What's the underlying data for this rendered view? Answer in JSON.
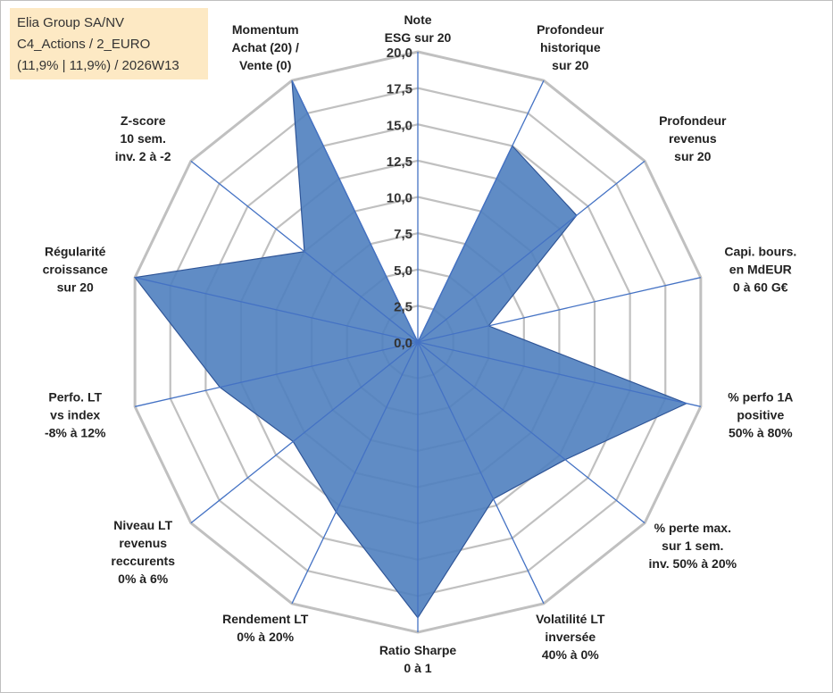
{
  "title_box": {
    "line1": "Elia Group SA/NV",
    "line2": "C4_Actions / 2_EURO",
    "line3": "(11,9% | 11,9%) / 2026W13"
  },
  "colors": {
    "grid": "#c0c0c0",
    "spoke": "#4472c4",
    "fill": "#4f7fbf",
    "stroke": "#2f5597",
    "title_bg": "#fde9c4"
  },
  "chart_data": {
    "type": "radar",
    "rmin": 0,
    "rmax": 20,
    "step": 2.5,
    "ticks": [
      "0,0",
      "2,5",
      "5,0",
      "7,5",
      "10,0",
      "12,5",
      "15,0",
      "17,5",
      "20,0"
    ],
    "axes": [
      {
        "label": [
          "Note",
          "ESG sur 20"
        ],
        "value": 0
      },
      {
        "label": [
          "Profondeur",
          "historique",
          "sur 20"
        ],
        "value": 15
      },
      {
        "label": [
          "Profondeur",
          "revenus",
          "sur 20"
        ],
        "value": 14
      },
      {
        "label": [
          "Capi. bours.",
          "en MdEUR",
          "0 à 60 G€"
        ],
        "value": 5
      },
      {
        "label": [
          "% perfo 1A",
          "positive",
          "50% à 80%"
        ],
        "value": 19
      },
      {
        "label": [
          "% perte max.",
          "sur 1 sem.",
          "inv. 50% à 20%"
        ],
        "value": 13
      },
      {
        "label": [
          "Volatilité LT",
          "inversée",
          "40% à 0%"
        ],
        "value": 12
      },
      {
        "label": [
          "Ratio Sharpe",
          "0 à 1"
        ],
        "value": 19
      },
      {
        "label": [
          "Rendement LT",
          "0% à 20%"
        ],
        "value": 13
      },
      {
        "label": [
          "Niveau LT",
          "revenus",
          "reccurents",
          "0% à 6%"
        ],
        "value": 11
      },
      {
        "label": [
          "Perfo. LT",
          "vs index",
          "-8% à 12%"
        ],
        "value": 14
      },
      {
        "label": [
          "Régularité",
          "croissance",
          "sur 20"
        ],
        "value": 20
      },
      {
        "label": [
          "Z-score",
          "10 sem.",
          "inv. 2 à -2"
        ],
        "value": 10
      },
      {
        "label": [
          "Momentum",
          "Achat (20) /",
          "Vente (0)"
        ],
        "value": 20
      }
    ]
  }
}
